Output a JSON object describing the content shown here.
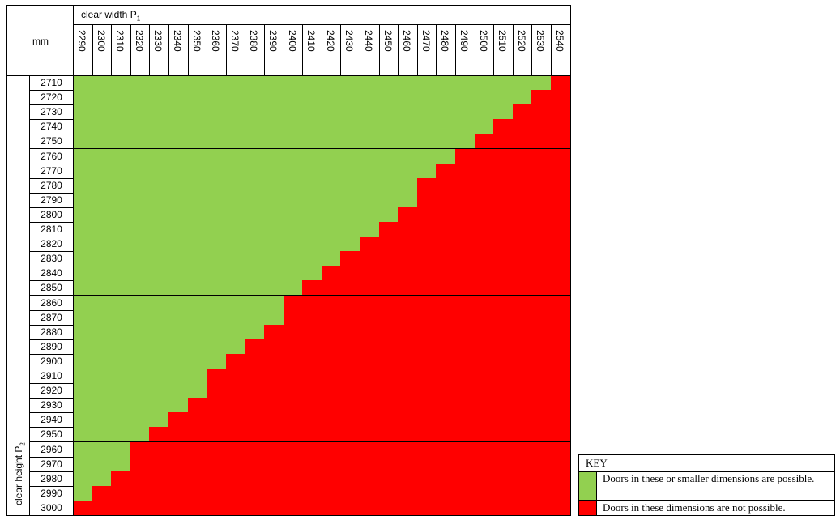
{
  "header": {
    "units": "mm",
    "width_title": "clear width P",
    "width_sub": "1",
    "height_title": "clear height P",
    "height_sub": "2"
  },
  "chart_data": {
    "type": "heatmap",
    "x_label": "clear width P1",
    "y_label": "clear height P2",
    "widths": [
      2290,
      2300,
      2310,
      2320,
      2330,
      2340,
      2350,
      2360,
      2370,
      2380,
      2390,
      2400,
      2410,
      2420,
      2430,
      2440,
      2450,
      2460,
      2470,
      2480,
      2490,
      2500,
      2510,
      2520,
      2530,
      2540
    ],
    "heights": [
      2710,
      2720,
      2730,
      2740,
      2750,
      2760,
      2770,
      2780,
      2790,
      2800,
      2810,
      2820,
      2830,
      2840,
      2850,
      2860,
      2870,
      2880,
      2890,
      2900,
      2910,
      2920,
      2930,
      2940,
      2950,
      2960,
      2970,
      2980,
      2990,
      3000
    ],
    "possible_count_per_row": [
      25,
      24,
      23,
      22,
      21,
      20,
      19,
      18,
      18,
      17,
      16,
      15,
      14,
      13,
      12,
      11,
      11,
      10,
      9,
      8,
      7,
      7,
      6,
      5,
      4,
      3,
      3,
      2,
      1,
      0
    ],
    "colors": {
      "possible": "#92d050",
      "not_possible": "#ff0000"
    }
  },
  "key": {
    "title": "KEY",
    "possible_text": "Doors in these or smaller dimensions are possible.",
    "not_possible_text": "Doors in these dimensions are not possible."
  }
}
